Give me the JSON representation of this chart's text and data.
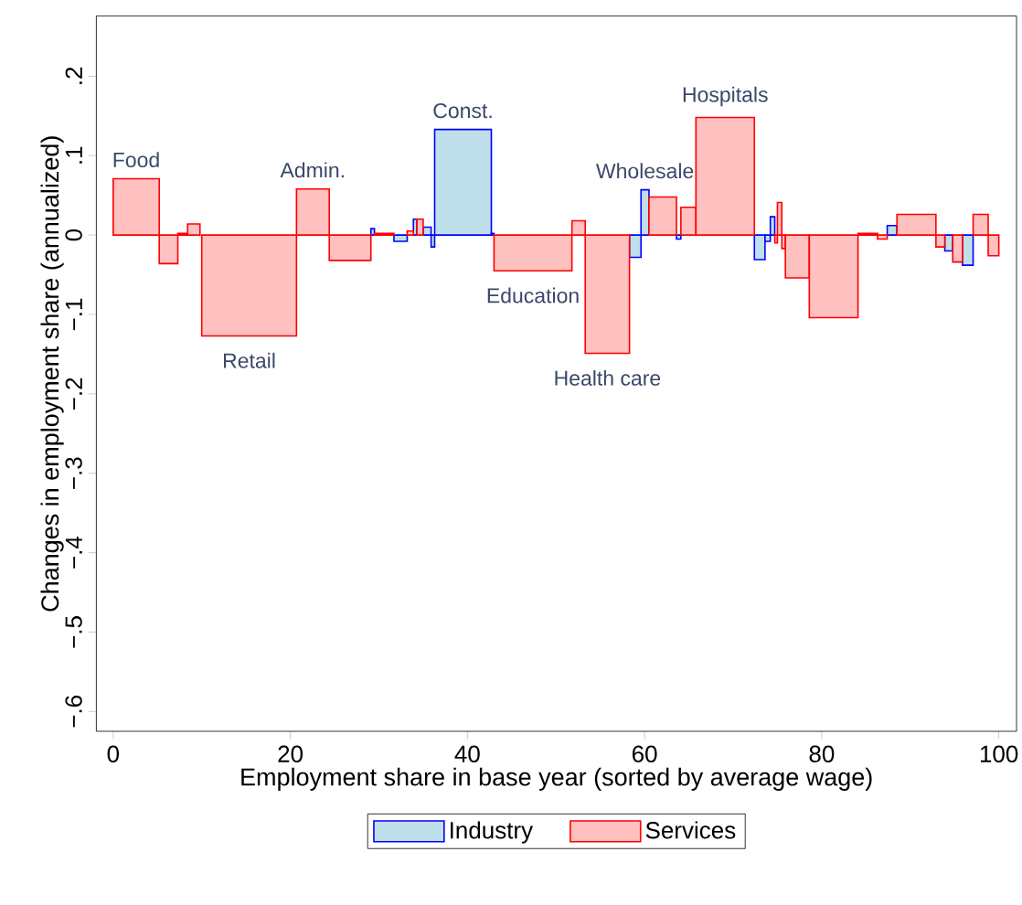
{
  "chart_data": {
    "type": "histogram",
    "xlabel": "Employment share in base year (sorted by average wage)",
    "ylabel": "Changes in employment share (annualized)",
    "bins": [
      0,
      5.2,
      7.3,
      8.4,
      9.8,
      10.0,
      20.7,
      24.4,
      29.1,
      29.5,
      31.7,
      33.2,
      33.9,
      34.3,
      35.0,
      35.9,
      36.3,
      42.7,
      43.0,
      51.8,
      53.3,
      58.3,
      59.6,
      60.5,
      63.6,
      64.1,
      65.8,
      72.4,
      73.6,
      74.2,
      74.7,
      75.0,
      75.5,
      75.9,
      78.6,
      84.1,
      86.3,
      87.4,
      88.5,
      92.9,
      93.9,
      94.8,
      95.9,
      97.1,
      98.8,
      100
    ],
    "series": [
      {
        "name": "Industry",
        "color": "#bfe0ea",
        "values": [
          null,
          null,
          null,
          null,
          null,
          null,
          null,
          null,
          0.008,
          null,
          -0.008,
          null,
          0.02,
          null,
          0.01,
          -0.015,
          0.133,
          0.002,
          null,
          null,
          null,
          -0.028,
          0.057,
          null,
          -0.005,
          null,
          null,
          -0.031,
          -0.008,
          0.023,
          null,
          null,
          null,
          null,
          null,
          null,
          null,
          0.012,
          null,
          null,
          -0.02,
          null,
          -0.038,
          null,
          null
        ]
      },
      {
        "name": "Services",
        "color": "#ffc0c0",
        "values": [
          0.071,
          -0.036,
          0.002,
          0.014,
          null,
          -0.127,
          0.058,
          -0.032,
          null,
          0.002,
          null,
          0.005,
          null,
          0.02,
          null,
          null,
          null,
          null,
          -0.045,
          0.018,
          -0.149,
          null,
          null,
          0.048,
          null,
          0.035,
          0.148,
          null,
          null,
          null,
          -0.01,
          0.041,
          -0.017,
          -0.054,
          -0.104,
          0.002,
          -0.005,
          null,
          0.026,
          -0.015,
          null,
          -0.034,
          null,
          0.026,
          -0.026
        ]
      }
    ],
    "xlim": [
      -1.9,
      102
    ],
    "xticks": [
      0,
      20,
      40,
      60,
      80,
      100
    ],
    "ylim": [
      -0.625,
      0.276
    ],
    "yticks": [
      {
        "value": -0.6,
        "label": "−.6"
      },
      {
        "value": -0.5,
        "label": "−.5"
      },
      {
        "value": -0.4,
        "label": "−.4"
      },
      {
        "value": -0.3,
        "label": "−.3"
      },
      {
        "value": -0.2,
        "label": "−.2"
      },
      {
        "value": -0.1,
        "label": "−.1"
      },
      0,
      {
        "value": 0.1,
        "label": ".1"
      },
      {
        "value": 0.2,
        "label": ".2"
      }
    ],
    "annotations": [
      {
        "text": "Food",
        "x": 2.6,
        "y": 0.071
      },
      {
        "text": "Retail",
        "x": 15.35,
        "y": -0.127
      },
      {
        "text": "Admin.",
        "x": 22.55,
        "y": 0.058
      },
      {
        "text": "Const.",
        "x": 39.5,
        "y": 0.133
      },
      {
        "text": "Education",
        "x": 47.4,
        "y": -0.045
      },
      {
        "text": "Health care",
        "x": 55.8,
        "y": -0.149
      },
      {
        "text": "Wholesale",
        "x": 60.05,
        "y": 0.057
      },
      {
        "text": "Hospitals",
        "x": 69.1,
        "y": 0.148
      }
    ],
    "legend": "bottom",
    "grid": false
  }
}
